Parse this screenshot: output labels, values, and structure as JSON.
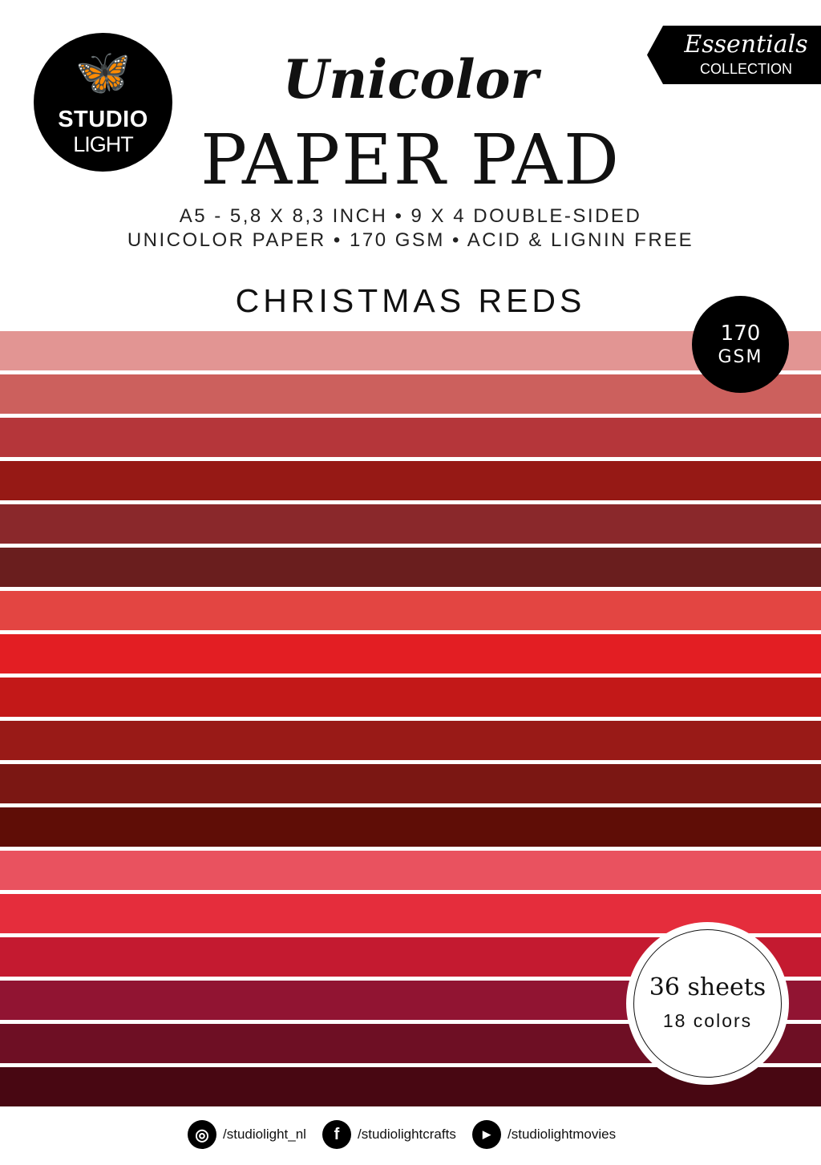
{
  "brand": {
    "line1": "STUDIO",
    "line2": "LIGHT"
  },
  "badge": {
    "script": "Essentials",
    "label": "COLLECTION"
  },
  "product": {
    "script_title": "Unicolor",
    "title": "PAPER PAD",
    "spec_line1": "A5 - 5,8 X 8,3 INCH • 9 X 4 DOUBLE-SIDED",
    "spec_line2": "UNICOLOR PAPER • 170 GSM • ACID & LIGNIN FREE",
    "collection_name": "CHRISTMAS REDS"
  },
  "gsm_badge": {
    "value": "170",
    "unit": "GSM"
  },
  "sheets_badge": {
    "sheets": "36 sheets",
    "colors": "18 colors"
  },
  "swatches": [
    "#e29593",
    "#cc605d",
    "#b5363a",
    "#961915",
    "#8a282b",
    "#6a1e1e",
    "#e34542",
    "#e31e23",
    "#c31818",
    "#991a17",
    "#7b1713",
    "#5f0d06",
    "#e9525f",
    "#e52d3c",
    "#c41a30",
    "#911432",
    "#6e0f24",
    "#480712"
  ],
  "social": [
    {
      "icon": "instagram-icon",
      "handle": "/studiolight_nl"
    },
    {
      "icon": "facebook-icon",
      "handle": "/studiolightcrafts"
    },
    {
      "icon": "youtube-icon",
      "handle": "/studiolightmovies"
    }
  ]
}
